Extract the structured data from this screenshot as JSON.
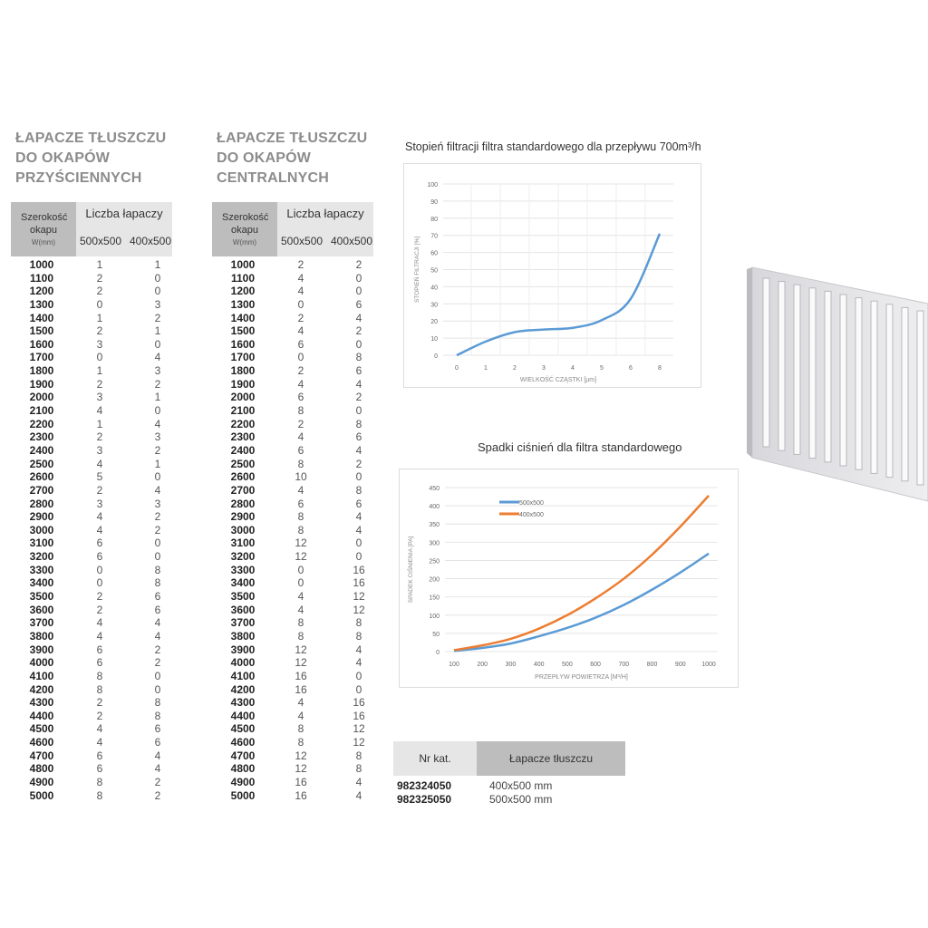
{
  "wall_table": {
    "title_lines": [
      "ŁAPACZE TŁUSZCZU",
      "DO OKAPÓW",
      "PRZYŚCIENNYCH"
    ],
    "header": {
      "width_label": "Szerokość okapu",
      "width_unit": "W(mm)",
      "count_label": "Liczba łapaczy",
      "col_a": "500x500",
      "col_b": "400x500"
    },
    "rows": [
      [
        "1000",
        "1",
        "1"
      ],
      [
        "1100",
        "2",
        "0"
      ],
      [
        "1200",
        "2",
        "0"
      ],
      [
        "1300",
        "0",
        "3"
      ],
      [
        "1400",
        "1",
        "2"
      ],
      [
        "1500",
        "2",
        "1"
      ],
      [
        "1600",
        "3",
        "0"
      ],
      [
        "1700",
        "0",
        "4"
      ],
      [
        "1800",
        "1",
        "3"
      ],
      [
        "1900",
        "2",
        "2"
      ],
      [
        "2000",
        "3",
        "1"
      ],
      [
        "2100",
        "4",
        "0"
      ],
      [
        "2200",
        "1",
        "4"
      ],
      [
        "2300",
        "2",
        "3"
      ],
      [
        "2400",
        "3",
        "2"
      ],
      [
        "2500",
        "4",
        "1"
      ],
      [
        "2600",
        "5",
        "0"
      ],
      [
        "2700",
        "2",
        "4"
      ],
      [
        "2800",
        "3",
        "3"
      ],
      [
        "2900",
        "4",
        "2"
      ],
      [
        "3000",
        "4",
        "2"
      ],
      [
        "3100",
        "6",
        "0"
      ],
      [
        "3200",
        "6",
        "0"
      ],
      [
        "3300",
        "0",
        "8"
      ],
      [
        "3400",
        "0",
        "8"
      ],
      [
        "3500",
        "2",
        "6"
      ],
      [
        "3600",
        "2",
        "6"
      ],
      [
        "3700",
        "4",
        "4"
      ],
      [
        "3800",
        "4",
        "4"
      ],
      [
        "3900",
        "6",
        "2"
      ],
      [
        "4000",
        "6",
        "2"
      ],
      [
        "4100",
        "8",
        "0"
      ],
      [
        "4200",
        "8",
        "0"
      ],
      [
        "4300",
        "2",
        "8"
      ],
      [
        "4400",
        "2",
        "8"
      ],
      [
        "4500",
        "4",
        "6"
      ],
      [
        "4600",
        "4",
        "6"
      ],
      [
        "4700",
        "6",
        "4"
      ],
      [
        "4800",
        "6",
        "4"
      ],
      [
        "4900",
        "8",
        "2"
      ],
      [
        "5000",
        "8",
        "2"
      ]
    ]
  },
  "central_table": {
    "title_lines": [
      "ŁAPACZE TŁUSZCZU",
      "DO OKAPÓW",
      "CENTRALNYCH"
    ],
    "header": {
      "width_label": "Szerokość okapu",
      "width_unit": "W(mm)",
      "count_label": "Liczba łapaczy",
      "col_a": "500x500",
      "col_b": "400x500"
    },
    "rows": [
      [
        "1000",
        "2",
        "2"
      ],
      [
        "1100",
        "4",
        "0"
      ],
      [
        "1200",
        "4",
        "0"
      ],
      [
        "1300",
        "0",
        "6"
      ],
      [
        "1400",
        "2",
        "4"
      ],
      [
        "1500",
        "4",
        "2"
      ],
      [
        "1600",
        "6",
        "0"
      ],
      [
        "1700",
        "0",
        "8"
      ],
      [
        "1800",
        "2",
        "6"
      ],
      [
        "1900",
        "4",
        "4"
      ],
      [
        "2000",
        "6",
        "2"
      ],
      [
        "2100",
        "8",
        "0"
      ],
      [
        "2200",
        "2",
        "8"
      ],
      [
        "2300",
        "4",
        "6"
      ],
      [
        "2400",
        "6",
        "4"
      ],
      [
        "2500",
        "8",
        "2"
      ],
      [
        "2600",
        "10",
        "0"
      ],
      [
        "2700",
        "4",
        "8"
      ],
      [
        "2800",
        "6",
        "6"
      ],
      [
        "2900",
        "8",
        "4"
      ],
      [
        "3000",
        "8",
        "4"
      ],
      [
        "3100",
        "12",
        "0"
      ],
      [
        "3200",
        "12",
        "0"
      ],
      [
        "3300",
        "0",
        "16"
      ],
      [
        "3400",
        "0",
        "16"
      ],
      [
        "3500",
        "4",
        "12"
      ],
      [
        "3600",
        "4",
        "12"
      ],
      [
        "3700",
        "8",
        "8"
      ],
      [
        "3800",
        "8",
        "8"
      ],
      [
        "3900",
        "12",
        "4"
      ],
      [
        "4000",
        "12",
        "4"
      ],
      [
        "4100",
        "16",
        "0"
      ],
      [
        "4200",
        "16",
        "0"
      ],
      [
        "4300",
        "4",
        "16"
      ],
      [
        "4400",
        "4",
        "16"
      ],
      [
        "4500",
        "8",
        "12"
      ],
      [
        "4600",
        "8",
        "12"
      ],
      [
        "4700",
        "12",
        "8"
      ],
      [
        "4800",
        "12",
        "8"
      ],
      [
        "4900",
        "16",
        "4"
      ],
      [
        "5000",
        "16",
        "4"
      ]
    ]
  },
  "catalog": {
    "header": {
      "nr": "Nr kat.",
      "name": "Łapacze tłuszczu"
    },
    "rows": [
      [
        "982324050",
        "400x500 mm"
      ],
      [
        "982325050",
        "500x500 mm"
      ]
    ]
  },
  "chart_data": [
    {
      "type": "line",
      "title": "Stopień filtracji filtra standardowego dla przepływu 700m³/h",
      "xlabel": "WIELKOŚĆ CZĄSTKI [µm]",
      "ylabel": "STOPIEŃ FILTRACJI [%]",
      "categories": [
        "0",
        "1",
        "2",
        "3",
        "4",
        "5",
        "6",
        "8"
      ],
      "values": [
        0,
        8,
        13.5,
        15,
        16,
        20.5,
        33,
        71
      ],
      "ylim": [
        0,
        100
      ],
      "yticks": [
        "0",
        "10",
        "20",
        "30",
        "40",
        "50",
        "60",
        "70",
        "80",
        "90",
        "100"
      ],
      "grid": true,
      "color": "#5b9bd5"
    },
    {
      "type": "line",
      "title": "Spadki ciśnień dla filtra standardowego",
      "xlabel": "PRZEPŁYW POWIETRZA [M³/H]",
      "ylabel": "SPADEK CIŚNIENIA [PA]",
      "categories": [
        "100",
        "200",
        "300",
        "400",
        "500",
        "600",
        "700",
        "800",
        "900",
        "1000"
      ],
      "ylim": [
        0,
        450
      ],
      "yticks": [
        "0",
        "50",
        "100",
        "150",
        "200",
        "250",
        "300",
        "350",
        "400",
        "450"
      ],
      "grid": true,
      "legend": "top-left",
      "series": [
        {
          "name": "500x500",
          "color": "#5b9bd5",
          "values": [
            2,
            10,
            22,
            42,
            65,
            93,
            128,
            170,
            217,
            269
          ]
        },
        {
          "name": "400x500",
          "color": "#ed7d31",
          "values": [
            4,
            17,
            35,
            63,
            100,
            146,
            200,
            266,
            343,
            428
          ]
        }
      ]
    }
  ]
}
